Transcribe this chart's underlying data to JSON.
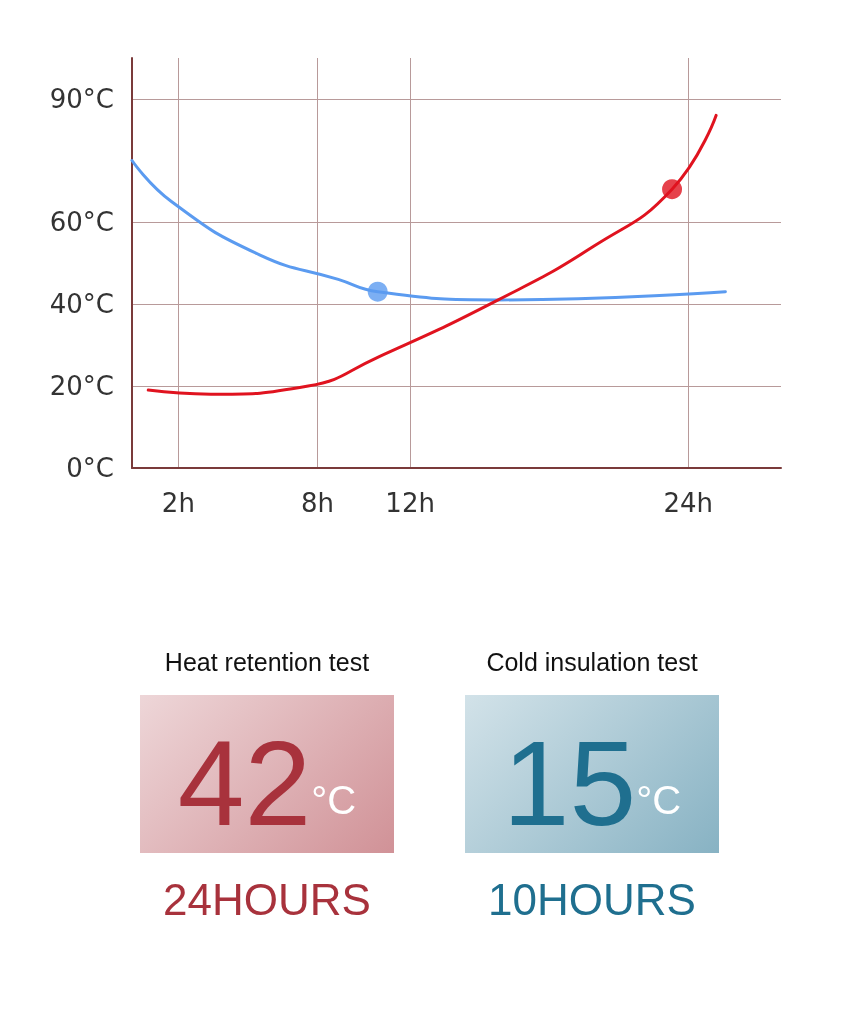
{
  "chart_data": [
    {
      "type": "line",
      "xlim": [
        0,
        28
      ],
      "ylim": [
        0,
        100
      ],
      "xticks": [
        {
          "value": 2,
          "label": "2h"
        },
        {
          "value": 8,
          "label": "8h"
        },
        {
          "value": 12,
          "label": "12h"
        },
        {
          "value": 24,
          "label": "24h"
        }
      ],
      "yticks": [
        {
          "value": 0,
          "label": "0°C"
        },
        {
          "value": 20,
          "label": "20°C"
        },
        {
          "value": 40,
          "label": "40°C"
        },
        {
          "value": 60,
          "label": "60°C"
        },
        {
          "value": 90,
          "label": "90°C"
        }
      ],
      "grid": true,
      "line_style": "solid",
      "marker": "none",
      "series": [
        {
          "color": "#5b9bf0",
          "x": [
            0,
            1.7,
            5.5,
            8.9,
            10.6,
            15.8,
            25.6
          ],
          "values": [
            75,
            65,
            52,
            46,
            43,
            41,
            43
          ]
        },
        {
          "color": "#e0131f",
          "x": [
            0.7,
            3.4,
            7.6,
            10.6,
            15.8,
            19.9,
            23.3,
            25.2
          ],
          "values": [
            19,
            18,
            20,
            27,
            41,
            54,
            68,
            86
          ]
        },
        {
          "type": "scatter",
          "marker": "circle",
          "color": "#5b9bf0",
          "x": [
            10.6
          ],
          "values": [
            43
          ]
        },
        {
          "type": "scatter",
          "marker": "circle",
          "color": "#e0131f",
          "x": [
            23.3
          ],
          "values": [
            68
          ]
        }
      ]
    },
    {
      "type": "other",
      "title": "Heat retention test",
      "annotations": [
        "42",
        "°C",
        "24HOURS"
      ],
      "color": "#a8323c"
    },
    {
      "type": "other",
      "title": "Cold insulation test",
      "annotations": [
        "15",
        "°C",
        "10HOURS"
      ],
      "color": "#1f6f8f"
    }
  ]
}
